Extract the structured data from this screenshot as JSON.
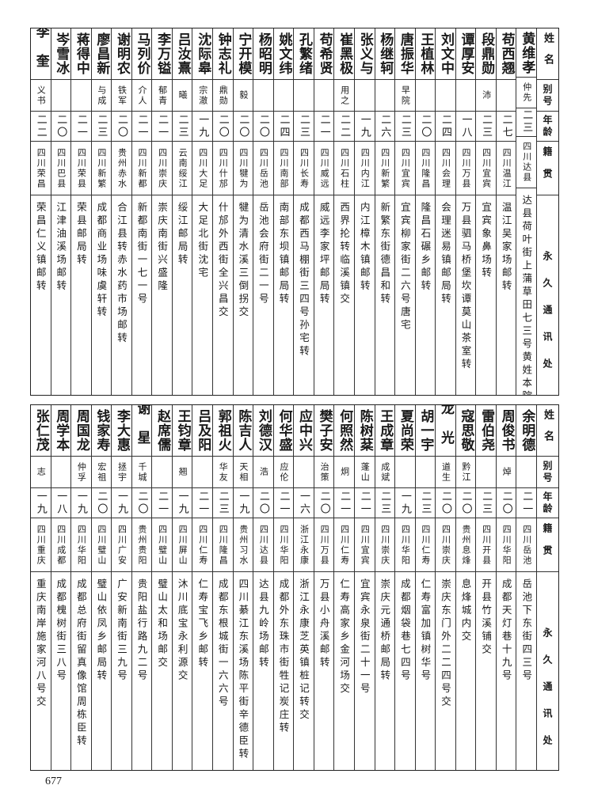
{
  "header": [
    "姓名",
    "别号",
    "年龄",
    "籍贯",
    "永久通讯处"
  ],
  "tables": [
    {
      "rows": [
        [
          "黄维孝",
          "仲先",
          "二三",
          "四川达县",
          "达县荷叶街上蒲草田七三号黄姓本院"
        ],
        [
          "苟西翘",
          "",
          "二七",
          "四川温江",
          "温江吴家场邮转"
        ],
        [
          "段鼎勋",
          "沛",
          "二三",
          "四川宜宾",
          "宜宾象鼻场转"
        ],
        [
          "谭厚安",
          "",
          "一八",
          "四川万县",
          "万县驷马桥堡坎谭莫山茶室转"
        ],
        [
          "刘文中",
          "",
          "二四",
          "四川会理",
          "会理迷易镇邮局转"
        ],
        [
          "王植林",
          "",
          "二〇",
          "四川隆昌",
          "隆昌石碾乡邮转"
        ],
        [
          "唐振华",
          "早院",
          "二三",
          "四川宜宾",
          "宜宾柳家街二六号唐宅"
        ],
        [
          "杨继轲",
          "",
          "二六",
          "四川新繁",
          "新繁东街德昌和转"
        ],
        [
          "张义与",
          "",
          "一九",
          "四川内江",
          "内江樟木镇邮转"
        ],
        [
          "崔黑极",
          "用之",
          "二二",
          "四川石柱",
          "西界抡转临溪镇交"
        ],
        [
          "苟希贤",
          "",
          "二一",
          "四川威远",
          "威远李家坪邮局转"
        ],
        [
          "孔繁绪",
          "",
          "二三",
          "四川长寿",
          "成都西马棚街三四号孙宅转"
        ],
        [
          "姚文纬",
          "",
          "二四",
          "四川南部",
          "南部东坝镇邮局转"
        ],
        [
          "杨昭明",
          "",
          "二〇",
          "四川岳池",
          "岳池会府街二一号"
        ],
        [
          "宁开模",
          "毅",
          "二〇",
          "四川犍为",
          "犍为清水溪三倒拐交"
        ],
        [
          "钟志礼",
          "鼎勋",
          "二〇",
          "四川什邡",
          "什邡外西街全兴昌交"
        ],
        [
          "沈际皋",
          "宗澈",
          "一九",
          "四川大足",
          "大足北街沈宅"
        ],
        [
          "吕汝熹",
          "曦",
          "二三",
          "云南绥江",
          "绥江邮局转"
        ],
        [
          "李万镒",
          "郁青",
          "二一",
          "四川崇庆",
          "崇庆南街兴盛隆"
        ],
        [
          "马列价",
          "介人",
          "二一",
          "四川新都",
          "新都南街一七一号"
        ],
        [
          "谢明农",
          "铁军",
          "二〇",
          "贵州赤水",
          "合江县转赤水药市场邮转"
        ],
        [
          "廖昌新",
          "与成",
          "二三",
          "四川新繁",
          "成都商业场味虞轩转"
        ],
        [
          "蒋得中",
          "",
          "二一",
          "四川荣县",
          "荣县邮局转"
        ],
        [
          "岑雪冰",
          "",
          "二〇",
          "四川巴县",
          "江津油溪场邮转"
        ],
        [
          "李奎",
          "义书",
          "二二",
          "四川荣昌",
          "荣昌仁义镇邮转"
        ]
      ]
    },
    {
      "rows": [
        [
          "余明德",
          "",
          "二一",
          "四川岳池",
          "岳池下东街四三号"
        ],
        [
          "周俊书",
          "焯",
          "二〇",
          "四川华阳",
          "成都天灯巷十九号"
        ],
        [
          "雷伯尧",
          "",
          "二三",
          "四川开县",
          "开县竹溪铺交"
        ],
        [
          "寇思敬",
          "黔江",
          "二〇",
          "贵州息烽",
          "息烽城内交"
        ],
        [
          "龙光",
          "道生",
          "二〇",
          "四川崇庆",
          "崇庆东门外二二四号交"
        ],
        [
          "胡一宇",
          "",
          "二三",
          "四川仁寿",
          "仁寿富加镇树华号"
        ],
        [
          "夏尚荣",
          "",
          "一九",
          "四川华阳",
          "成都烟袋巷七四号"
        ],
        [
          "王成章",
          "成斌",
          "二三",
          "四川崇庆",
          "崇庆元通桥邮局转"
        ],
        [
          "陈树棻",
          "蓬山",
          "二一",
          "四川宜宾",
          "宜宾永泉街二十一号"
        ],
        [
          "何照然",
          "炯",
          "二一",
          "四川仁寿",
          "仁寿高家乡金河场交"
        ],
        [
          "樊子安",
          "治策",
          "二〇",
          "四川万县",
          "万县小舟溪邮转"
        ],
        [
          "应中兴",
          "",
          "一六",
          "浙江永康",
          "浙江永康芝英镇桩记转交"
        ],
        [
          "何华盛",
          "应伦",
          "二一",
          "四川华阳",
          "成都外东珠市街牲记炭庄转"
        ],
        [
          "刘德汉",
          "浩",
          "二〇",
          "四川达县",
          "达县九岭场邮转"
        ],
        [
          "陈吉人",
          "天相",
          "一九",
          "贵州习水",
          "四川綦江东溪场陈平街辛德臣转"
        ],
        [
          "郭祖火",
          "华友",
          "二三",
          "四川隆昌",
          "成都东根城街一六六号"
        ],
        [
          "吕及阳",
          "",
          "二一",
          "四川仁寿",
          "仁寿宝飞乡邮转"
        ],
        [
          "王钧章",
          "翘",
          "一九",
          "四川屏山",
          "沐川底宝永利源交"
        ],
        [
          "赵席儒",
          "",
          "二一",
          "四川璧山",
          "璧山太和场邮交"
        ],
        [
          "谢星",
          "千城",
          "二〇",
          "贵州贵阳",
          "贵阳盐行路九二号"
        ],
        [
          "李大惠",
          "拯宇",
          "一九",
          "四川广安",
          "广安新南街三九号"
        ],
        [
          "钱家寿",
          "宏祖",
          "二〇",
          "四川璧山",
          "璧山依凤乡邮局转"
        ],
        [
          "周国龙",
          "仲孚",
          "一九",
          "四川华阳",
          "成都总府街留真像馆周栋臣转"
        ],
        [
          "周学本",
          "",
          "一八",
          "四川成都",
          "成都槐树街三八号"
        ],
        [
          "张仁茂",
          "志",
          "一九",
          "四川重庆",
          "重庆南岸施家河八号交"
        ]
      ]
    }
  ],
  "page_number": "677"
}
